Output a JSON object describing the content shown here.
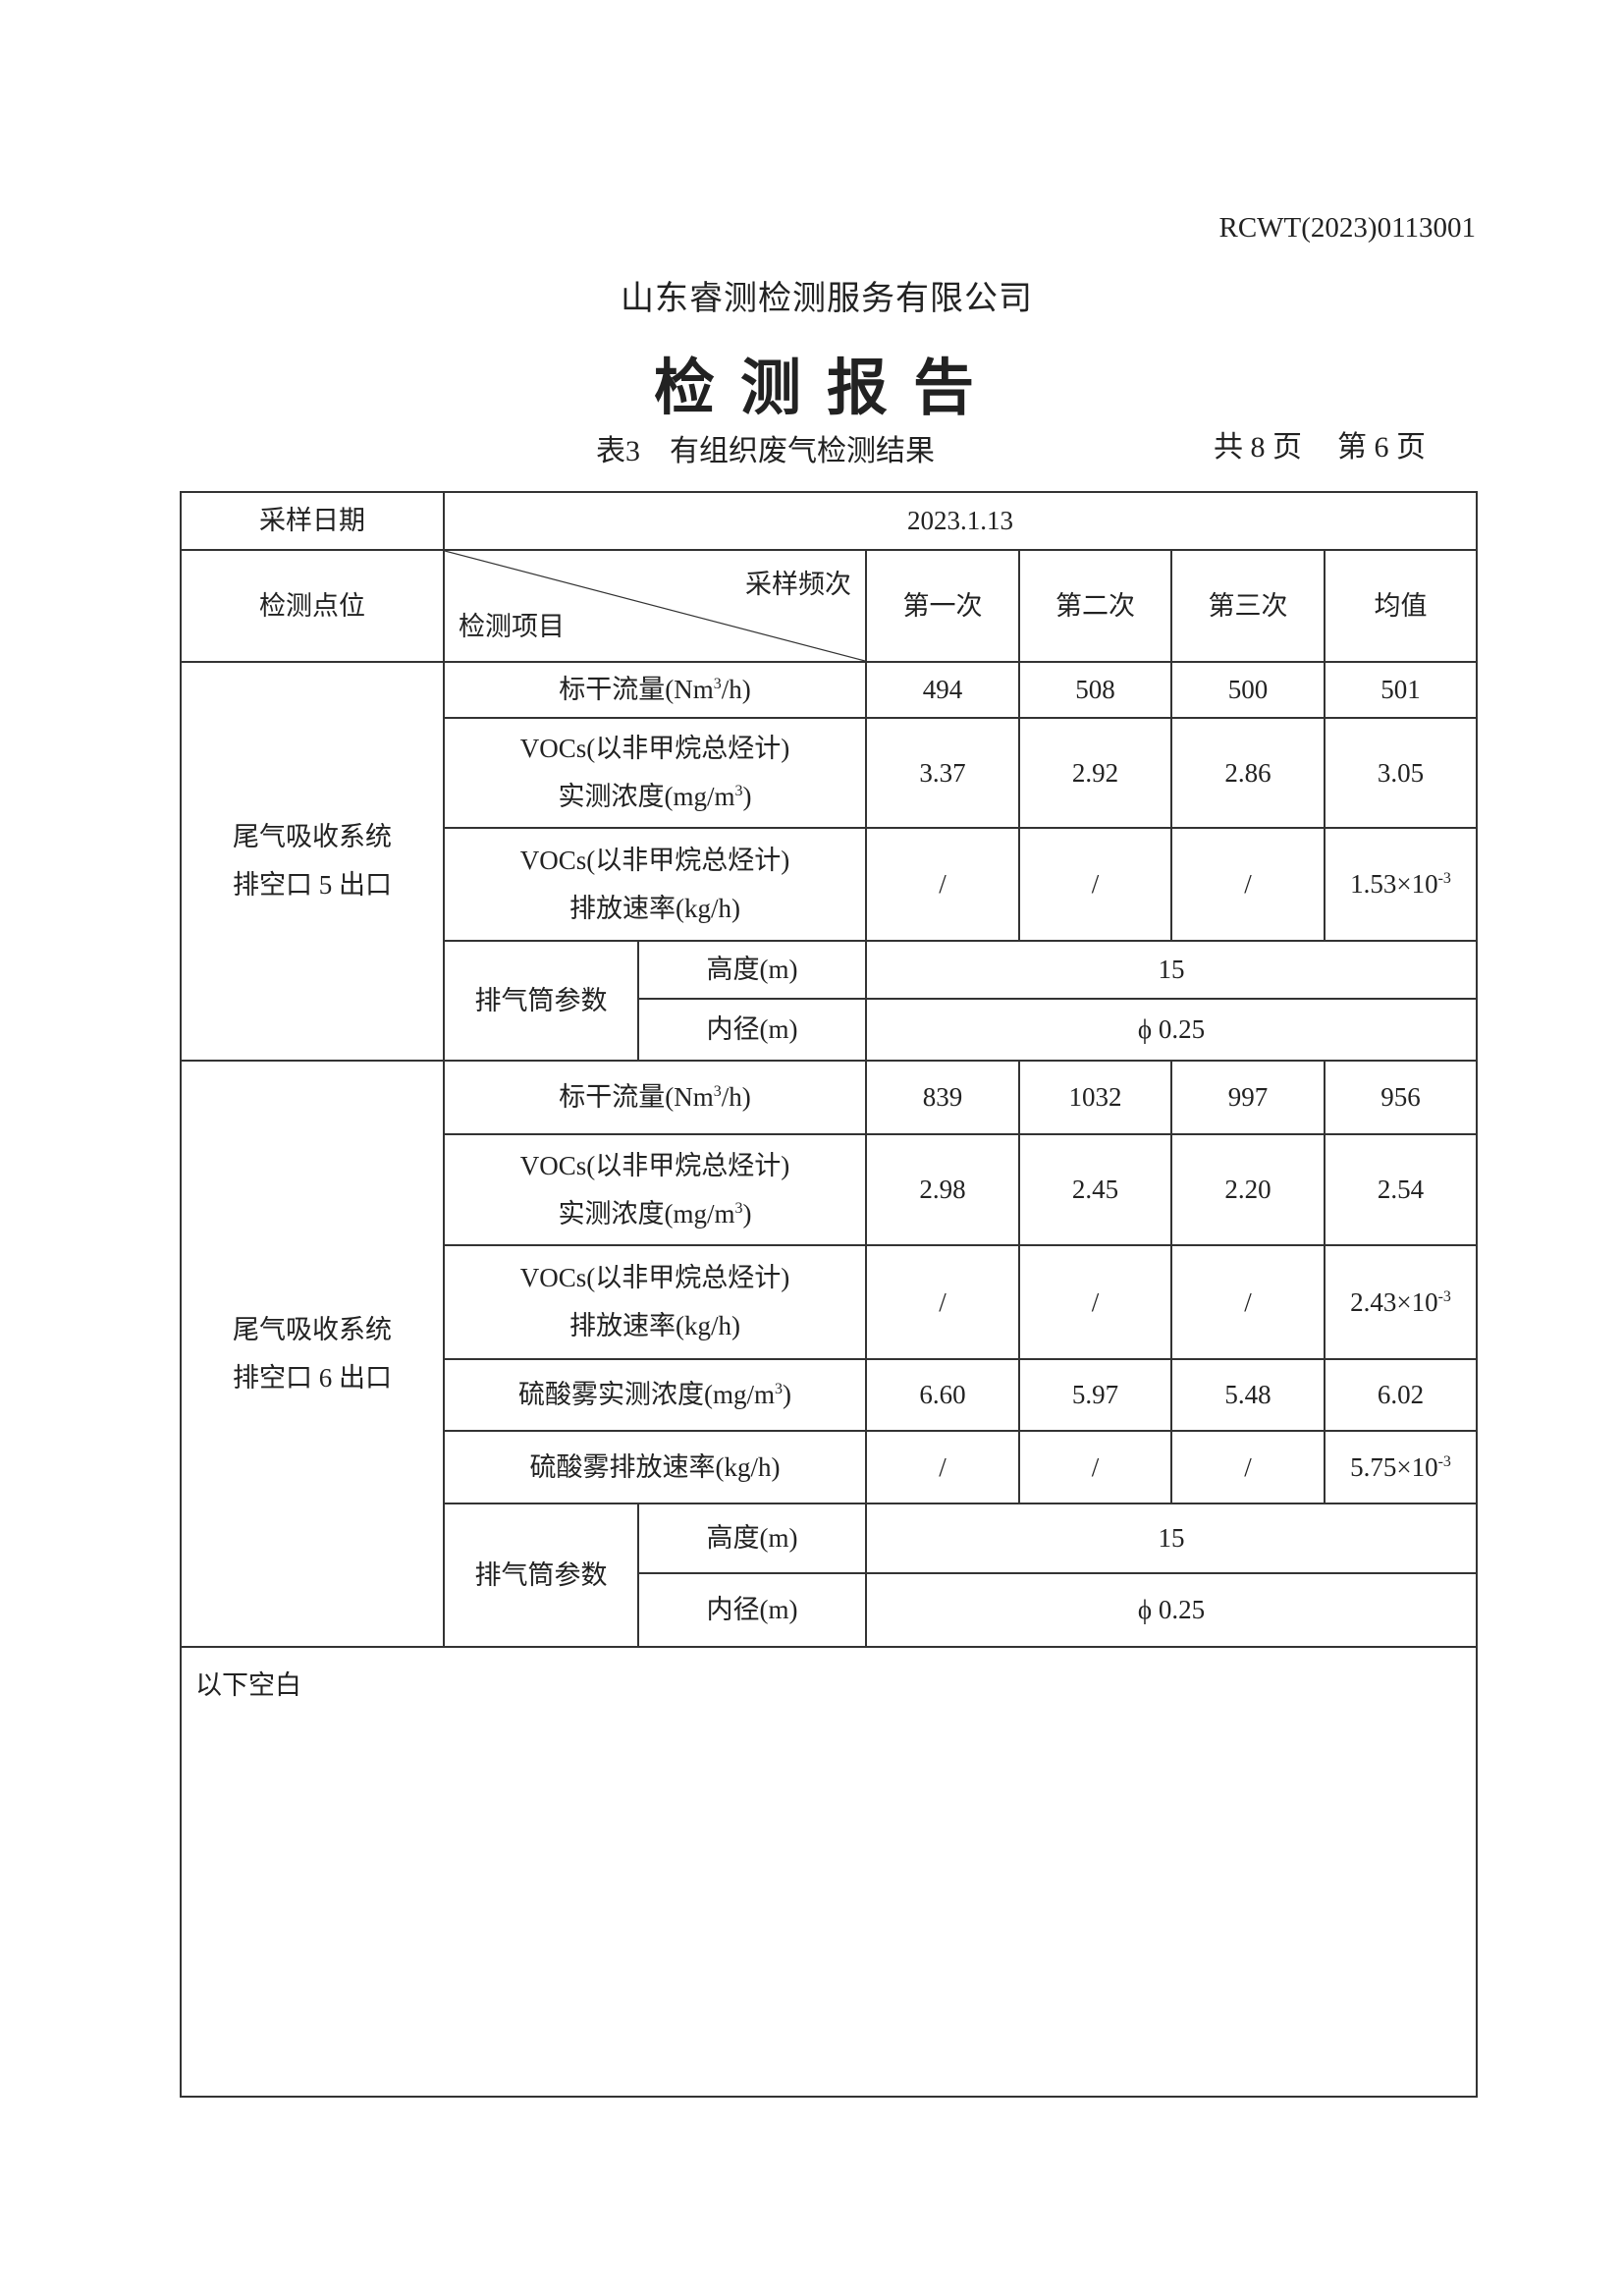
{
  "header": {
    "doc_number": "RCWT(2023)0113001",
    "company": "山东睿测检测服务有限公司",
    "title": "检测报告",
    "table_caption": "表3　有组织废气检测结果",
    "total_pages": "共 8 页",
    "current_page": "第 6 页"
  },
  "table": {
    "sample_date_label": "采样日期",
    "sample_date": "2023.1.13",
    "point_label": "检测点位",
    "freq_label": "采样频次",
    "item_label": "检测项目",
    "columns": [
      "第一次",
      "第二次",
      "第三次",
      "均值"
    ],
    "groups": [
      {
        "point": [
          "尾气吸收系统",
          "排空口 5 出口"
        ],
        "rows": [
          {
            "item": "标干流量(Nm",
            "sup": "3",
            "tail": "/h)",
            "values": [
              "494",
              "508",
              "500",
              "501"
            ]
          },
          {
            "item": "VOCs(以非甲烷总烃计)",
            "item2": "实测浓度(mg/m",
            "sup": "3",
            "tail": ")",
            "values": [
              "3.37",
              "2.92",
              "2.86",
              "3.05"
            ]
          },
          {
            "item": "VOCs(以非甲烷总烃计)",
            "item2": "排放速率(kg/h)",
            "values": [
              "/",
              "/",
              "/",
              "1.53×10"
            ],
            "mean_sup": "-3"
          }
        ],
        "stack": {
          "label": "排气筒参数",
          "height_label": "高度(m)",
          "height": "15",
          "diameter_label": "内径(m)",
          "diameter": "ϕ 0.25"
        }
      },
      {
        "point": [
          "尾气吸收系统",
          "排空口 6 出口"
        ],
        "rows": [
          {
            "item": "标干流量(Nm",
            "sup": "3",
            "tail": "/h)",
            "values": [
              "839",
              "1032",
              "997",
              "956"
            ]
          },
          {
            "item": "VOCs(以非甲烷总烃计)",
            "item2": "实测浓度(mg/m",
            "sup": "3",
            "tail": ")",
            "values": [
              "2.98",
              "2.45",
              "2.20",
              "2.54"
            ]
          },
          {
            "item": "VOCs(以非甲烷总烃计)",
            "item2": "排放速率(kg/h)",
            "values": [
              "/",
              "/",
              "/",
              "2.43×10"
            ],
            "mean_sup": "-3"
          },
          {
            "item": "硫酸雾实测浓度(mg/m",
            "sup": "3",
            "tail": ")",
            "values": [
              "6.60",
              "5.97",
              "5.48",
              "6.02"
            ]
          },
          {
            "item": "硫酸雾排放速率(kg/h)",
            "values": [
              "/",
              "/",
              "/",
              "5.75×10"
            ],
            "mean_sup": "-3"
          }
        ],
        "stack": {
          "label": "排气筒参数",
          "height_label": "高度(m)",
          "height": "15",
          "diameter_label": "内径(m)",
          "diameter": "ϕ 0.25"
        }
      }
    ],
    "footer_note": "以下空白"
  }
}
